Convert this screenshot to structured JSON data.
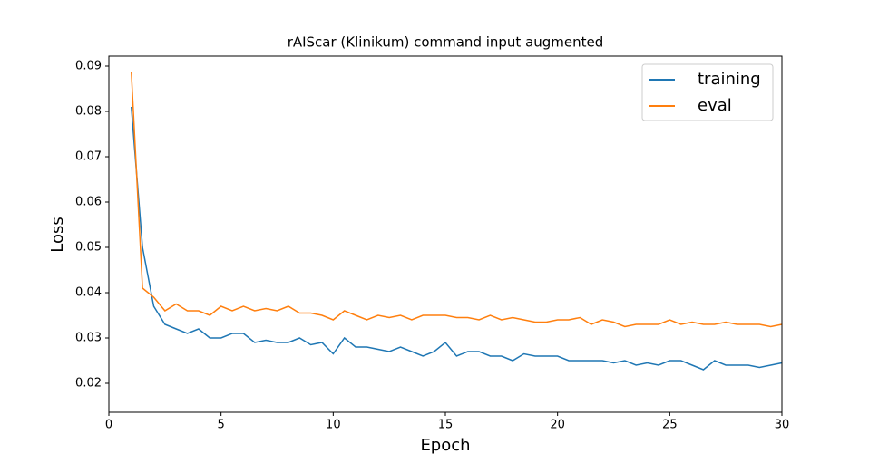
{
  "chart_data": {
    "type": "line",
    "title": "rAIScar (Klinikum) command input augmented",
    "x_label": "Epoch",
    "y_label": "Loss",
    "x": [
      1,
      1.5,
      2,
      2.5,
      3,
      3.5,
      4,
      4.5,
      5,
      5.5,
      6,
      6.5,
      7,
      7.5,
      8,
      8.5,
      9,
      9.5,
      10,
      10.5,
      11,
      11.5,
      12,
      12.5,
      13,
      13.5,
      14,
      14.5,
      15,
      15.5,
      16,
      16.5,
      17,
      17.5,
      18,
      18.5,
      19,
      19.5,
      20,
      20.5,
      21,
      21.5,
      22,
      22.5,
      23,
      23.5,
      24,
      24.5,
      25,
      25.5,
      26,
      26.5,
      27,
      27.5,
      28,
      28.5,
      29,
      29.5,
      30
    ],
    "series": [
      {
        "name": "training",
        "color": "#1f77b4",
        "values": [
          0.081,
          0.05,
          0.037,
          0.033,
          0.032,
          0.031,
          0.032,
          0.03,
          0.03,
          0.031,
          0.031,
          0.029,
          0.0295,
          0.029,
          0.029,
          0.03,
          0.0285,
          0.029,
          0.0265,
          0.03,
          0.028,
          0.028,
          0.0275,
          0.027,
          0.028,
          0.027,
          0.026,
          0.027,
          0.029,
          0.026,
          0.027,
          0.027,
          0.026,
          0.026,
          0.025,
          0.0265,
          0.026,
          0.026,
          0.026,
          0.025,
          0.025,
          0.025,
          0.025,
          0.0245,
          0.025,
          0.024,
          0.0245,
          0.024,
          0.025,
          0.025,
          0.024,
          0.023,
          0.025,
          0.024,
          0.024,
          0.024,
          0.0235,
          0.024,
          0.0245
        ]
      },
      {
        "name": "eval",
        "color": "#ff7f0e",
        "values": [
          0.0888,
          0.041,
          0.039,
          0.036,
          0.0375,
          0.036,
          0.036,
          0.035,
          0.037,
          0.036,
          0.037,
          0.036,
          0.0365,
          0.036,
          0.037,
          0.0355,
          0.0355,
          0.035,
          0.034,
          0.036,
          0.035,
          0.034,
          0.035,
          0.0345,
          0.035,
          0.034,
          0.035,
          0.035,
          0.035,
          0.0345,
          0.0345,
          0.034,
          0.035,
          0.034,
          0.0345,
          0.034,
          0.0335,
          0.0335,
          0.034,
          0.034,
          0.0345,
          0.033,
          0.034,
          0.0335,
          0.0325,
          0.033,
          0.033,
          0.033,
          0.034,
          0.033,
          0.0335,
          0.033,
          0.033,
          0.0335,
          0.033,
          0.033,
          0.033,
          0.0325,
          0.033
        ]
      }
    ],
    "xlim": [
      0,
      30
    ],
    "xticks": [
      0,
      5,
      10,
      15,
      20,
      25,
      30
    ],
    "ylim": [
      0.0136,
      0.0922
    ],
    "yticks": [
      0.02,
      0.03,
      0.04,
      0.05,
      0.06,
      0.07,
      0.08,
      0.09
    ],
    "legend": "upper right",
    "grid": false
  }
}
